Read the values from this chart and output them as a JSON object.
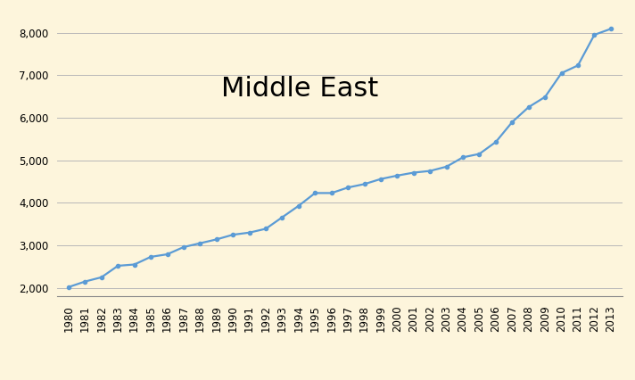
{
  "title": "Middle East",
  "years": [
    1980,
    1981,
    1982,
    1983,
    1984,
    1985,
    1986,
    1987,
    1988,
    1989,
    1990,
    1991,
    1992,
    1993,
    1994,
    1995,
    1996,
    1997,
    1998,
    1999,
    2000,
    2001,
    2002,
    2003,
    2004,
    2005,
    2006,
    2007,
    2008,
    2009,
    2010,
    2011,
    2012,
    2013
  ],
  "values": [
    2020,
    2150,
    2250,
    2520,
    2550,
    2730,
    2790,
    2960,
    3050,
    3140,
    3250,
    3300,
    3390,
    3660,
    3930,
    4230,
    4230,
    4360,
    4440,
    4560,
    4640,
    4710,
    4750,
    4850,
    5070,
    5150,
    5430,
    5900,
    6250,
    6490,
    7050,
    7230,
    7950,
    8090
  ],
  "line_color": "#5b9bd5",
  "background_color": "#fdf5dc",
  "grid_color": "#b8b8b8",
  "ylim": [
    1800,
    8500
  ],
  "yticks": [
    2000,
    3000,
    4000,
    5000,
    6000,
    7000,
    8000
  ],
  "title_fontsize": 22,
  "tick_fontsize": 8.5,
  "marker": "o",
  "marker_size": 3.0,
  "linewidth": 1.6
}
